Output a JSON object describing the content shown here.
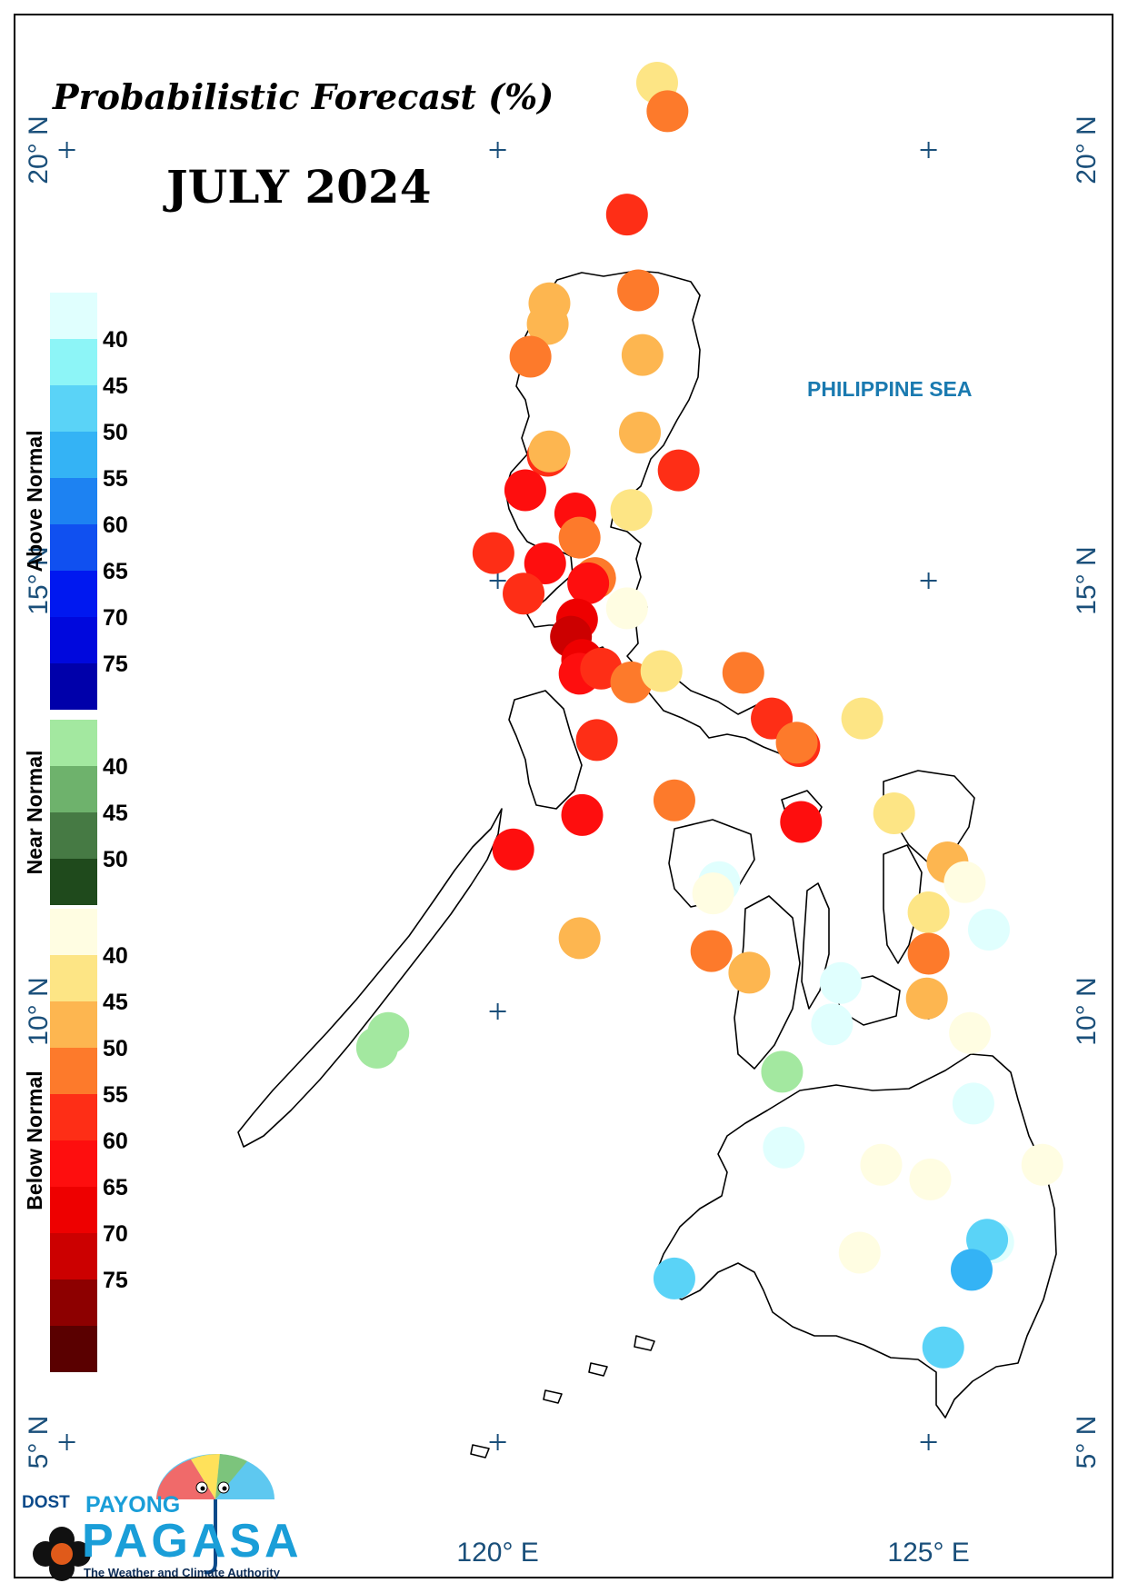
{
  "title": "Probabilistic Forecast (%)",
  "month": "JULY 2024",
  "sea_label": "PHILIPPINE SEA",
  "axes": {
    "lat_labels": [
      {
        "text": "20° N",
        "lat": 20
      },
      {
        "text": "15° N",
        "lat": 15
      },
      {
        "text": "10° N",
        "lat": 10
      },
      {
        "text": "5° N",
        "lat": 5
      }
    ],
    "lon_labels": [
      {
        "text": "120° E",
        "lon": 120
      },
      {
        "text": "125° E",
        "lon": 125
      }
    ],
    "graticule_lats": [
      20,
      15,
      10,
      5
    ],
    "graticule_lons": [
      115,
      120,
      125
    ]
  },
  "legend": {
    "above_normal": {
      "title": "Above Normal",
      "colors": [
        "#e0fffe",
        "#8df5f7",
        "#5ad3f7",
        "#34b3f5",
        "#1d82f2",
        "#1050f0",
        "#0018f0",
        "#0008dd",
        "#0000aa"
      ],
      "labels": [
        "40",
        "45",
        "50",
        "55",
        "60",
        "65",
        "70",
        "75"
      ]
    },
    "near_normal": {
      "title": "Near Normal",
      "colors": [
        "#a3e8a0",
        "#6eb26c",
        "#467a44",
        "#1f4a1c"
      ],
      "labels": [
        "40",
        "45",
        "50"
      ]
    },
    "below_normal": {
      "title": "Below Normal",
      "colors": [
        "#fffde2",
        "#fde585",
        "#fdb650",
        "#fd7a2b",
        "#fe2e16",
        "#fe0e0e",
        "#ee0000",
        "#cc0000",
        "#8d0000",
        "#5a0000"
      ],
      "labels": [
        "40",
        "45",
        "50",
        "55",
        "60",
        "65",
        "70",
        "75"
      ]
    }
  },
  "stations": [
    {
      "lat": 20.78,
      "lon": 121.85,
      "category": "below",
      "color": "#fde585"
    },
    {
      "lat": 20.45,
      "lon": 121.97,
      "category": "below",
      "color": "#fd7a2b"
    },
    {
      "lat": 19.25,
      "lon": 121.5,
      "category": "below",
      "color": "#fe2e16"
    },
    {
      "lat": 18.37,
      "lon": 121.63,
      "category": "below",
      "color": "#fd7a2b"
    },
    {
      "lat": 18.22,
      "lon": 120.6,
      "category": "below",
      "color": "#fdb650"
    },
    {
      "lat": 17.98,
      "lon": 120.58,
      "category": "below",
      "color": "#fdb650"
    },
    {
      "lat": 17.6,
      "lon": 120.38,
      "category": "below",
      "color": "#fd7a2b"
    },
    {
      "lat": 17.62,
      "lon": 121.68,
      "category": "below",
      "color": "#fdb650"
    },
    {
      "lat": 16.72,
      "lon": 121.65,
      "category": "below",
      "color": "#fdb650"
    },
    {
      "lat": 16.45,
      "lon": 120.58,
      "category": "below",
      "color": "#fe2e16"
    },
    {
      "lat": 16.5,
      "lon": 120.6,
      "category": "below",
      "color": "#fdb650"
    },
    {
      "lat": 16.28,
      "lon": 122.1,
      "category": "below",
      "color": "#fe2e16"
    },
    {
      "lat": 16.05,
      "lon": 120.32,
      "category": "below",
      "color": "#fe0e0e"
    },
    {
      "lat": 15.78,
      "lon": 120.9,
      "category": "below",
      "color": "#fe0e0e"
    },
    {
      "lat": 15.82,
      "lon": 121.55,
      "category": "below",
      "color": "#fde585"
    },
    {
      "lat": 15.5,
      "lon": 120.95,
      "category": "below",
      "color": "#fd7a2b"
    },
    {
      "lat": 15.32,
      "lon": 119.95,
      "category": "below",
      "color": "#fe2e16"
    },
    {
      "lat": 15.2,
      "lon": 120.55,
      "category": "below",
      "color": "#fe0e0e"
    },
    {
      "lat": 15.03,
      "lon": 121.13,
      "category": "below",
      "color": "#fd7a2b"
    },
    {
      "lat": 14.97,
      "lon": 121.05,
      "category": "below",
      "color": "#fe0e0e"
    },
    {
      "lat": 14.85,
      "lon": 120.3,
      "category": "below",
      "color": "#fe2e16"
    },
    {
      "lat": 14.68,
      "lon": 121.5,
      "category": "below",
      "color": "#fffde2"
    },
    {
      "lat": 14.55,
      "lon": 120.92,
      "category": "below",
      "color": "#ee0000"
    },
    {
      "lat": 14.35,
      "lon": 120.85,
      "category": "below",
      "color": "#cc0000"
    },
    {
      "lat": 14.08,
      "lon": 120.98,
      "category": "below",
      "color": "#ee0000"
    },
    {
      "lat": 13.92,
      "lon": 120.95,
      "category": "below",
      "color": "#fe0e0e"
    },
    {
      "lat": 13.98,
      "lon": 121.2,
      "category": "below",
      "color": "#fe2e16"
    },
    {
      "lat": 13.82,
      "lon": 121.55,
      "category": "below",
      "color": "#fd7a2b"
    },
    {
      "lat": 13.95,
      "lon": 121.9,
      "category": "below",
      "color": "#fde585"
    },
    {
      "lat": 13.93,
      "lon": 122.85,
      "category": "below",
      "color": "#fd7a2b"
    },
    {
      "lat": 13.4,
      "lon": 123.18,
      "category": "below",
      "color": "#fe2e16"
    },
    {
      "lat": 13.4,
      "lon": 124.23,
      "category": "below",
      "color": "#fde585"
    },
    {
      "lat": 13.15,
      "lon": 121.15,
      "category": "below",
      "color": "#fe2e16"
    },
    {
      "lat": 13.08,
      "lon": 123.5,
      "category": "below",
      "color": "#fe2e16"
    },
    {
      "lat": 13.12,
      "lon": 123.47,
      "category": "below",
      "color": "#fd7a2b"
    },
    {
      "lat": 12.45,
      "lon": 122.05,
      "category": "below",
      "color": "#fd7a2b"
    },
    {
      "lat": 12.3,
      "lon": 124.6,
      "category": "below",
      "color": "#fde585"
    },
    {
      "lat": 12.28,
      "lon": 120.98,
      "category": "below",
      "color": "#fe0e0e"
    },
    {
      "lat": 12.2,
      "lon": 123.52,
      "category": "below",
      "color": "#fe0e0e"
    },
    {
      "lat": 11.88,
      "lon": 120.18,
      "category": "below",
      "color": "#fe0e0e"
    },
    {
      "lat": 11.73,
      "lon": 125.22,
      "category": "below",
      "color": "#fdb650"
    },
    {
      "lat": 11.5,
      "lon": 122.57,
      "category": "above",
      "color": "#e0fffe"
    },
    {
      "lat": 11.5,
      "lon": 125.42,
      "category": "below",
      "color": "#fffde2"
    },
    {
      "lat": 11.37,
      "lon": 122.5,
      "category": "below",
      "color": "#fffde2"
    },
    {
      "lat": 11.15,
      "lon": 125.0,
      "category": "below",
      "color": "#fde585"
    },
    {
      "lat": 10.95,
      "lon": 125.7,
      "category": "above",
      "color": "#e0fffe"
    },
    {
      "lat": 10.85,
      "lon": 120.95,
      "category": "below",
      "color": "#fdb650"
    },
    {
      "lat": 10.7,
      "lon": 122.48,
      "category": "below",
      "color": "#fd7a2b"
    },
    {
      "lat": 10.67,
      "lon": 125.0,
      "category": "below",
      "color": "#fd7a2b"
    },
    {
      "lat": 10.45,
      "lon": 122.92,
      "category": "below",
      "color": "#fdb650"
    },
    {
      "lat": 10.33,
      "lon": 123.98,
      "category": "above",
      "color": "#e0fffe"
    },
    {
      "lat": 10.15,
      "lon": 124.98,
      "category": "below",
      "color": "#fdb650"
    },
    {
      "lat": 9.75,
      "lon": 125.48,
      "category": "below",
      "color": "#fffde2"
    },
    {
      "lat": 9.75,
      "lon": 118.73,
      "category": "near",
      "color": "#a3e8a0"
    },
    {
      "lat": 9.58,
      "lon": 118.6,
      "category": "near",
      "color": "#a3e8a0"
    },
    {
      "lat": 9.85,
      "lon": 123.88,
      "category": "above",
      "color": "#e0fffe"
    },
    {
      "lat": 9.3,
      "lon": 123.3,
      "category": "near",
      "color": "#a3e8a0"
    },
    {
      "lat": 8.93,
      "lon": 125.52,
      "category": "above",
      "color": "#e0fffe"
    },
    {
      "lat": 8.42,
      "lon": 123.32,
      "category": "above",
      "color": "#e0fffe"
    },
    {
      "lat": 8.22,
      "lon": 124.45,
      "category": "below",
      "color": "#fffde2"
    },
    {
      "lat": 8.22,
      "lon": 126.32,
      "category": "below",
      "color": "#fffde2"
    },
    {
      "lat": 8.05,
      "lon": 125.02,
      "category": "below",
      "color": "#fffde2"
    },
    {
      "lat": 7.32,
      "lon": 125.75,
      "category": "above",
      "color": "#e0fffe"
    },
    {
      "lat": 7.35,
      "lon": 125.68,
      "category": "above",
      "color": "#5ad3f7"
    },
    {
      "lat": 7.2,
      "lon": 124.2,
      "category": "below",
      "color": "#fffde2"
    },
    {
      "lat": 7.0,
      "lon": 125.5,
      "category": "above",
      "color": "#34b3f5"
    },
    {
      "lat": 6.9,
      "lon": 122.05,
      "category": "above",
      "color": "#5ad3f7"
    },
    {
      "lat": 6.1,
      "lon": 125.17,
      "category": "above",
      "color": "#5ad3f7"
    }
  ],
  "logo": {
    "dost": "DOST",
    "payong": "PAYONG",
    "pagasa": "PAGASA",
    "tagline": "The Weather and Climate Authority"
  }
}
